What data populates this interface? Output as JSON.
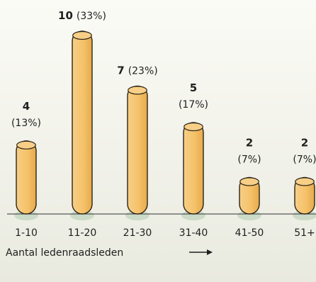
{
  "chart_data": {
    "type": "bar",
    "categories": [
      "1-10",
      "11-20",
      "21-30",
      "31-40",
      "41-50",
      "51+"
    ],
    "values": [
      4,
      10,
      7,
      5,
      2,
      2
    ],
    "percent_labels": [
      "(13%)",
      "(33%)",
      "(23%)",
      "(17%)",
      "(7%)",
      "(7%)"
    ],
    "xlabel": "Aantal ledenraadsleden",
    "ylabel": "",
    "ylim": [
      0,
      10
    ],
    "grid": false,
    "colors": {
      "bar_fill": "#f5c26b",
      "bar_stroke": "#2b2418",
      "shadow": "#c8d8c4",
      "baseline": "#333333",
      "text": "#1f1f1f"
    }
  }
}
